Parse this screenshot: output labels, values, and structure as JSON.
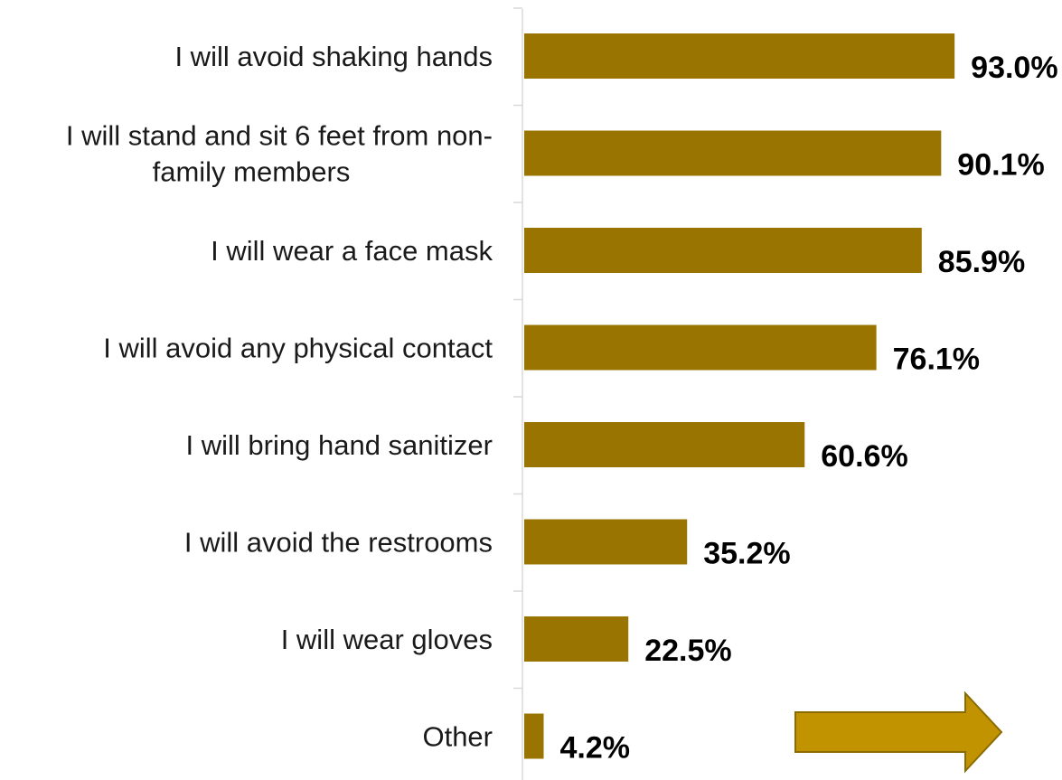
{
  "chart_data": {
    "type": "bar",
    "orientation": "horizontal",
    "categories": [
      [
        "I will avoid shaking hands"
      ],
      [
        "I will stand and sit 6 feet from non-",
        "family members"
      ],
      [
        "I will wear a face mask"
      ],
      [
        "I will avoid any physical contact"
      ],
      [
        "I will bring hand sanitizer"
      ],
      [
        "I will avoid the restrooms"
      ],
      [
        "I will wear gloves"
      ],
      [
        "Other"
      ]
    ],
    "values": [
      93.0,
      90.1,
      85.9,
      76.1,
      60.6,
      35.2,
      22.5,
      4.2
    ],
    "value_labels": [
      "93.0%",
      "90.1%",
      "85.9%",
      "76.1%",
      "60.6%",
      "35.2%",
      "22.5%",
      "4.2%"
    ],
    "xlim": [
      0,
      100
    ],
    "grid": false,
    "legend": "none",
    "bar_color": "#9a7400"
  },
  "arrow_color": "#c19300",
  "arrow_stroke": "#8a6b00"
}
